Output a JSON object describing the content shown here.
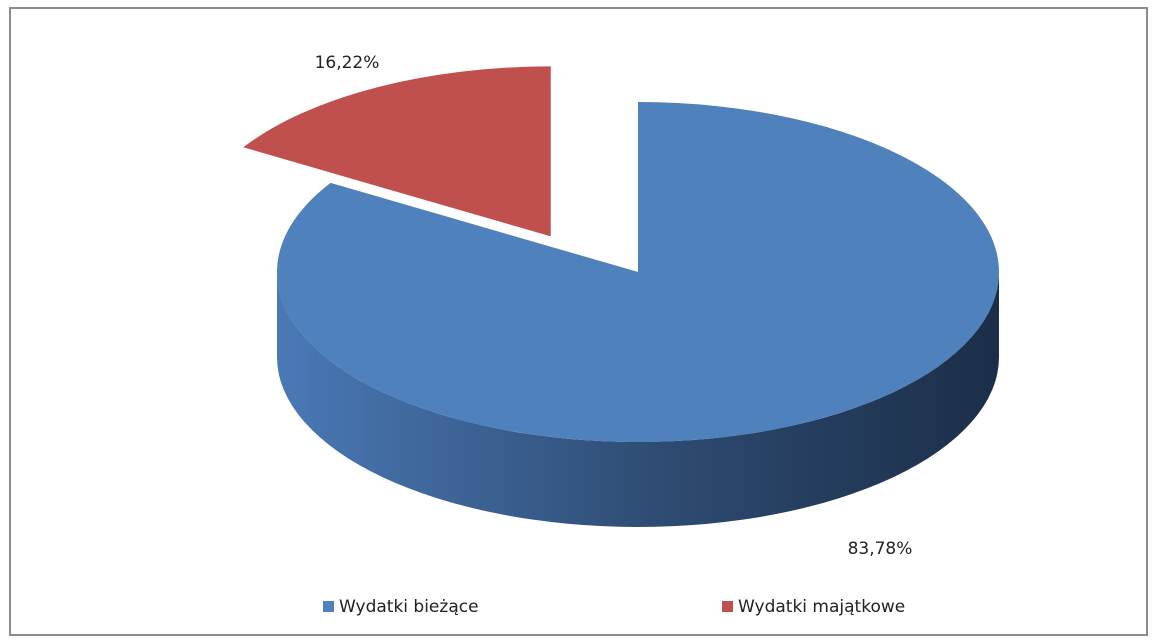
{
  "chart_data": {
    "type": "pie3d",
    "categories": [
      "Wydatki bieżące",
      "Wydatki majątkowe"
    ],
    "values": [
      83.78,
      16.22
    ],
    "value_labels": [
      "83,78%",
      "16,22%"
    ],
    "colors": [
      "#4f81bd",
      "#c0504d"
    ],
    "legend": "bottom"
  }
}
